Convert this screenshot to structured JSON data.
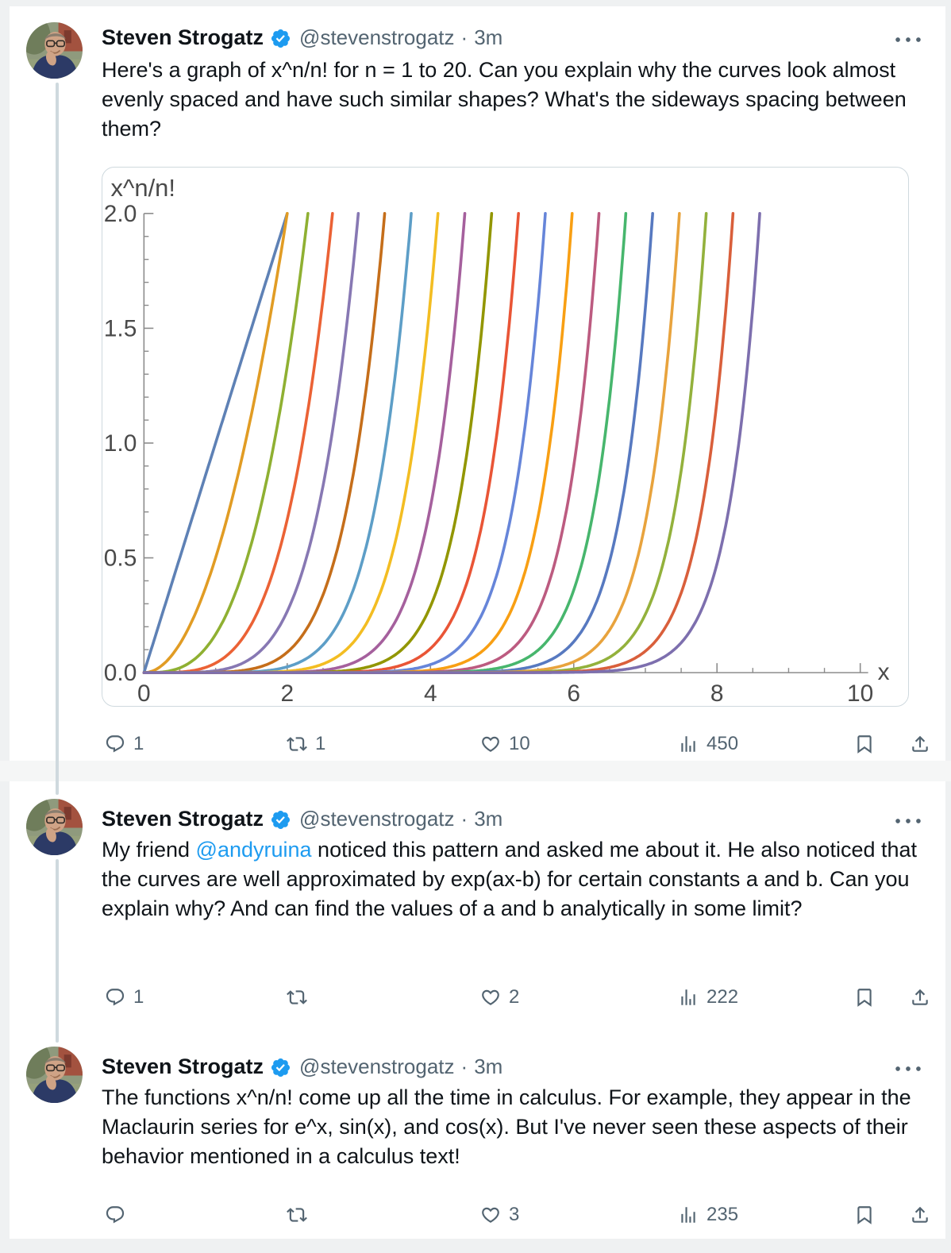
{
  "page": {
    "outer_bg": "#eff1f2",
    "card_bg": "#ffffff",
    "section_gap_bg": "#f5f6f6",
    "thread_line_color": "#cfd9de",
    "text_primary": "#0f1419",
    "text_secondary": "#536471",
    "link_color": "#1d9bf0",
    "verified_color": "#1d9bf0",
    "icon_color": "#536471",
    "media_border": "#cfd9de"
  },
  "author": {
    "name": "Steven Strogatz",
    "handle": "@stevenstrogatz",
    "verified": true
  },
  "tweets": [
    {
      "separator": "·",
      "time": "3m",
      "text": "Here's a graph of x^n/n! for n = 1 to 20. Can you explain why the curves look almost evenly spaced and have such similar shapes? What's the sideways spacing between them?",
      "engagement": {
        "replies": "1",
        "retweets": "1",
        "likes": "10",
        "views": "450"
      }
    },
    {
      "separator": "·",
      "time": "3m",
      "text_before": "My friend ",
      "mention": "@andyruina",
      "text_after": " noticed this pattern and asked me about it. He also noticed that the curves are well approximated by exp(ax-b) for certain constants a and b. Can you explain why? And can find the values of a and b analytically in some limit?",
      "engagement": {
        "replies": "1",
        "retweets": "",
        "likes": "2",
        "views": "222"
      }
    },
    {
      "separator": "·",
      "time": "3m",
      "text": "The functions x^n/n! come up all the time in calculus. For example, they appear in the Maclaurin series for e^x, sin(x), and cos(x). But I've never seen these aspects of their behavior mentioned in a calculus text!",
      "engagement": {
        "replies": "",
        "retweets": "",
        "likes": "3",
        "views": "235"
      }
    }
  ],
  "chart_data": {
    "type": "line",
    "title": "",
    "ylabel": "x^n/n!",
    "xlabel": "x",
    "function": "y = x^n / n!",
    "n_min": 1,
    "n_max": 20,
    "x_range": [
      0,
      10
    ],
    "y_range": [
      0,
      2
    ],
    "x_ticks": [
      0,
      2,
      4,
      6,
      8,
      10
    ],
    "x_tick_labels": [
      "0",
      "2",
      "4",
      "6",
      "8",
      "10"
    ],
    "y_ticks": [
      0,
      0.5,
      1,
      1.5,
      2
    ],
    "y_tick_labels": [
      "0.0",
      "0.5",
      "1.0",
      "1.5",
      "2.0"
    ],
    "x_minor_step": 0.5,
    "y_minor_step": 0.1,
    "grid": false,
    "legend": "none",
    "axis_color": "#8c8c8c",
    "tick_label_color": "#4a4a4a",
    "curve_stroke_width": 3.6,
    "series_colors": [
      "#5e81b5",
      "#e19c24",
      "#8fb032",
      "#eb6235",
      "#8778b3",
      "#c56e1a",
      "#5d9ec7",
      "#f3bd22",
      "#a5609d",
      "#929600",
      "#e95536",
      "#6685d9",
      "#f89f13",
      "#bc5b80",
      "#47b66d",
      "#5779c0",
      "#e8a33d",
      "#93b13c",
      "#d95f3b",
      "#7d6fae"
    ],
    "x_where_curve_reaches_y2": [
      2.0,
      2.0,
      2.29,
      2.63,
      2.99,
      3.36,
      3.73,
      4.1,
      4.48,
      4.86,
      5.23,
      5.6,
      5.98,
      6.35,
      6.73,
      7.1,
      7.48,
      7.85,
      8.22,
      8.6
    ]
  }
}
